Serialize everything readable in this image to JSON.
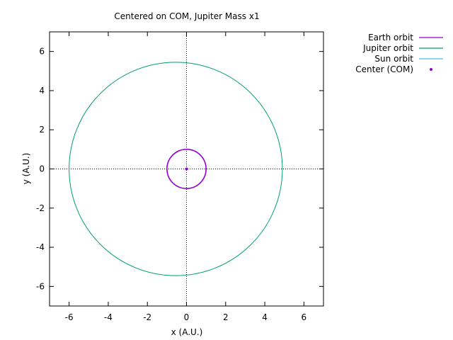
{
  "chart_data": {
    "type": "line",
    "title": "Centered on COM, Jupiter Mass x1",
    "xlabel": "x (A.U.)",
    "ylabel": "y (A.U.)",
    "xlim": [
      -7,
      7
    ],
    "ylim": [
      -7,
      7
    ],
    "xticks": [
      -6,
      -4,
      -2,
      0,
      2,
      4,
      6
    ],
    "yticks": [
      -6,
      -4,
      -2,
      0,
      2,
      4,
      6
    ],
    "zero_axes": true,
    "grid": false,
    "legend_position": "outside-top-right",
    "series": [
      {
        "name": "Earth orbit",
        "kind": "ellipse",
        "center": [
          0.0,
          0.0
        ],
        "radius_x": 1.0,
        "radius_y": 1.0,
        "color": "#9400d3"
      },
      {
        "name": "Jupiter orbit",
        "kind": "ellipse",
        "center": [
          -0.55,
          0.0
        ],
        "radius_x": 5.45,
        "radius_y": 5.45,
        "color": "#009e73"
      },
      {
        "name": "Sun orbit",
        "kind": "ellipse",
        "center": [
          0.0,
          0.0
        ],
        "radius_x": 0.005,
        "radius_y": 0.005,
        "color": "#56b4e9"
      },
      {
        "name": "Center (COM)",
        "kind": "point",
        "x": 0,
        "y": 0,
        "color": "#9400d3"
      }
    ]
  }
}
